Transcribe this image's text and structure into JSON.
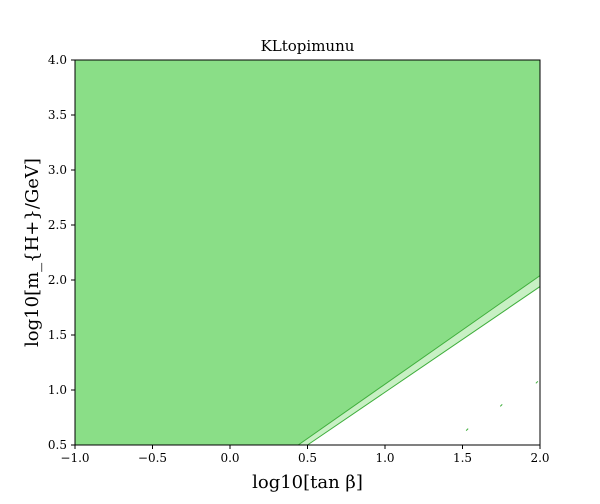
{
  "chart_data": {
    "type": "area",
    "title": "KLtopimunu",
    "xlabel": "log10[tan β]",
    "ylabel": "log10[m_{H+}/GeV]",
    "xlim": [
      -1.0,
      2.0
    ],
    "ylim": [
      0.5,
      4.0
    ],
    "x_ticks": [
      "−1.0",
      "−0.5",
      "0.0",
      "0.5",
      "1.0",
      "1.5",
      "2.0"
    ],
    "y_ticks": [
      "0.5",
      "1.0",
      "1.5",
      "2.0",
      "2.5",
      "3.0",
      "3.5",
      "4.0"
    ],
    "grid": false,
    "series": [
      {
        "role": "excluded-2sigma",
        "boundary": [
          [
            0.44,
            0.5
          ],
          [
            2.0,
            2.04
          ]
        ]
      },
      {
        "role": "excluded-1sigma-band",
        "boundary": [
          [
            0.5,
            0.5
          ],
          [
            2.0,
            1.94
          ]
        ]
      }
    ],
    "islands": [
      [
        1.53,
        0.64
      ],
      [
        1.75,
        0.86
      ],
      [
        1.98,
        1.07
      ]
    ],
    "colors": {
      "fill_dark": "#8ade87",
      "fill_light": "#c8f0c4",
      "edge": "#3fae3c"
    }
  }
}
